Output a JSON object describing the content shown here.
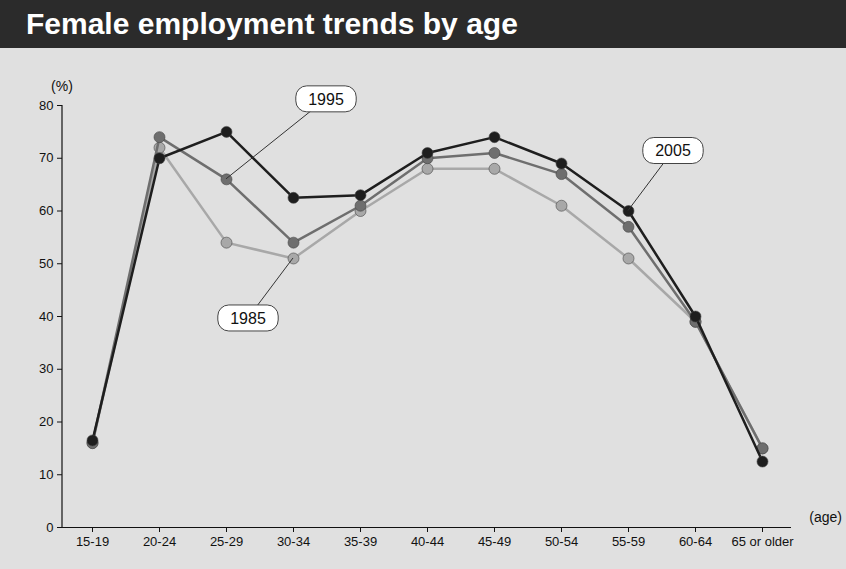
{
  "chart_data": {
    "type": "line",
    "title": "Female employment trends by age",
    "x_label": "(age)",
    "y_label": "(%)",
    "categories": [
      "15-19",
      "20-24",
      "25-29",
      "30-34",
      "35-39",
      "40-44",
      "45-49",
      "50-54",
      "55-59",
      "60-64",
      "65 or older"
    ],
    "series": [
      {
        "name": "1985",
        "color": "#a8a8a8",
        "marker": "circle",
        "values": [
          16,
          72,
          54,
          51,
          60,
          68,
          68,
          61,
          51,
          39,
          15
        ]
      },
      {
        "name": "1995",
        "color": "#6e6e6e",
        "marker": "circle",
        "values": [
          16,
          74,
          66,
          54,
          61,
          70,
          71,
          67,
          57,
          39,
          15
        ]
      },
      {
        "name": "2005",
        "color": "#1e1e1e",
        "marker": "circle",
        "values": [
          16.5,
          70,
          75,
          62.5,
          63,
          71,
          74,
          69,
          60,
          40,
          12.5
        ]
      }
    ],
    "ylim": [
      0,
      80
    ],
    "yticks": [
      0,
      10,
      20,
      30,
      40,
      50,
      60,
      70,
      80
    ],
    "grid": false
  }
}
